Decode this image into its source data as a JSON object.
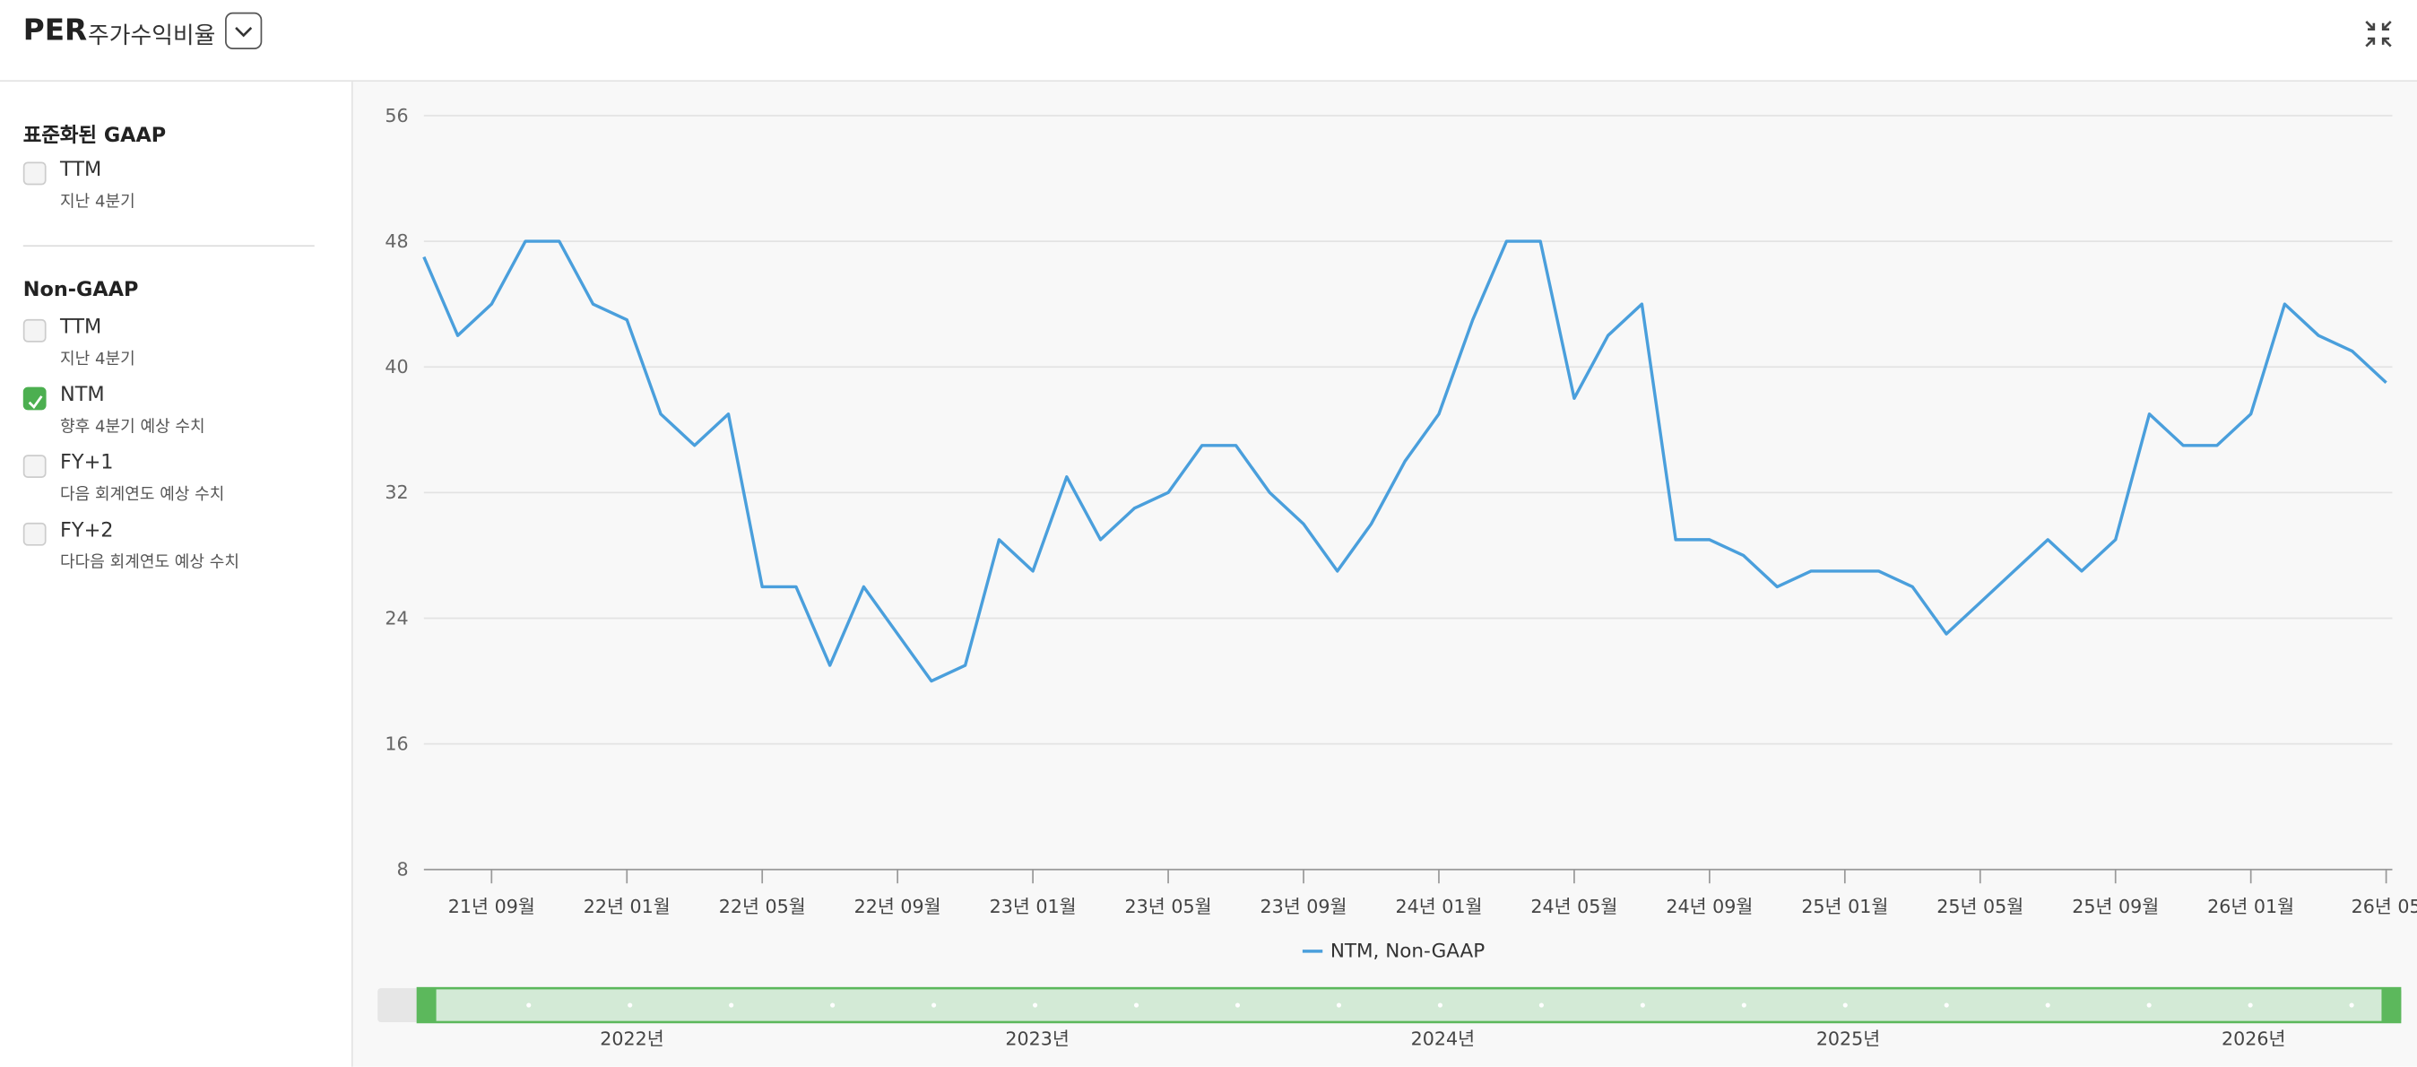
{
  "header": {
    "title": "PER",
    "subtitle": "주가수익비율"
  },
  "sidebar": {
    "groups": [
      {
        "title": "표준화된 GAAP",
        "items": [
          {
            "label": "TTM",
            "sub": "지난 4분기",
            "checked": false
          }
        ]
      },
      {
        "title": "Non-GAAP",
        "items": [
          {
            "label": "TTM",
            "sub": "지난 4분기",
            "checked": false
          },
          {
            "label": "NTM",
            "sub": "향후 4분기 예상 수치",
            "checked": true
          },
          {
            "label": "FY+1",
            "sub": "다음 회계연도 예상 수치",
            "checked": false
          },
          {
            "label": "FY+2",
            "sub": "다다음 회계연도 예상 수치",
            "checked": false
          }
        ]
      }
    ]
  },
  "chart_data": {
    "type": "line",
    "grid": true,
    "x": [
      "2021-07",
      "2021-08",
      "2021-09",
      "2021-10",
      "2021-11",
      "2021-12",
      "2022-01",
      "2022-02",
      "2022-03",
      "2022-04",
      "2022-05",
      "2022-06",
      "2022-07",
      "2022-08",
      "2022-09",
      "2022-10",
      "2022-11",
      "2022-12",
      "2023-01",
      "2023-02",
      "2023-03",
      "2023-04",
      "2023-05",
      "2023-06",
      "2023-07",
      "2023-08",
      "2023-09",
      "2023-10",
      "2023-11",
      "2023-12",
      "2024-01",
      "2024-02",
      "2024-03",
      "2024-04",
      "2024-05",
      "2024-06",
      "2024-07",
      "2024-08",
      "2024-09",
      "2024-10",
      "2024-11",
      "2024-12",
      "2025-01",
      "2025-02",
      "2025-03",
      "2025-04",
      "2025-05",
      "2025-06",
      "2025-07",
      "2025-08",
      "2025-09",
      "2025-10",
      "2025-11",
      "2025-12",
      "2026-01",
      "2026-02",
      "2026-03",
      "2026-04",
      "2026-05"
    ],
    "series": [
      {
        "name": "NTM, Non-GAAP",
        "color": "#4a9fdc",
        "values": [
          47,
          42,
          44,
          48,
          48,
          44,
          43,
          37,
          35,
          37,
          26,
          26,
          21,
          26,
          23,
          20,
          21,
          29,
          27,
          33,
          29,
          31,
          32,
          35,
          35,
          32,
          30,
          27,
          30,
          34,
          37,
          43,
          48,
          48,
          38,
          42,
          44,
          29,
          29,
          28,
          26,
          27,
          27,
          27,
          26,
          23,
          25,
          27,
          29,
          27,
          29,
          37,
          35,
          35,
          37,
          44,
          42,
          41,
          39
        ]
      }
    ],
    "xlim": [
      "2021-07",
      "2026-05"
    ],
    "xticks": [
      {
        "value": "2021-09",
        "label": "21년 09월"
      },
      {
        "value": "2022-01",
        "label": "22년 01월"
      },
      {
        "value": "2022-05",
        "label": "22년 05월"
      },
      {
        "value": "2022-09",
        "label": "22년 09월"
      },
      {
        "value": "2023-01",
        "label": "23년 01월"
      },
      {
        "value": "2023-05",
        "label": "23년 05월"
      },
      {
        "value": "2023-09",
        "label": "23년 09월"
      },
      {
        "value": "2024-01",
        "label": "24년 01월"
      },
      {
        "value": "2024-05",
        "label": "24년 05월"
      },
      {
        "value": "2024-09",
        "label": "24년 09월"
      },
      {
        "value": "2025-01",
        "label": "25년 01월"
      },
      {
        "value": "2025-05",
        "label": "25년 05월"
      },
      {
        "value": "2025-09",
        "label": "25년 09월"
      },
      {
        "value": "2026-01",
        "label": "26년 01월"
      },
      {
        "value": "2026-05",
        "label": "26년 05"
      }
    ],
    "ylim": [
      8,
      56
    ],
    "yticks": [
      8,
      16,
      24,
      32,
      40,
      48,
      56
    ],
    "navigator_labels": [
      "2022년",
      "2023년",
      "2024년",
      "2025년",
      "2026년"
    ]
  }
}
